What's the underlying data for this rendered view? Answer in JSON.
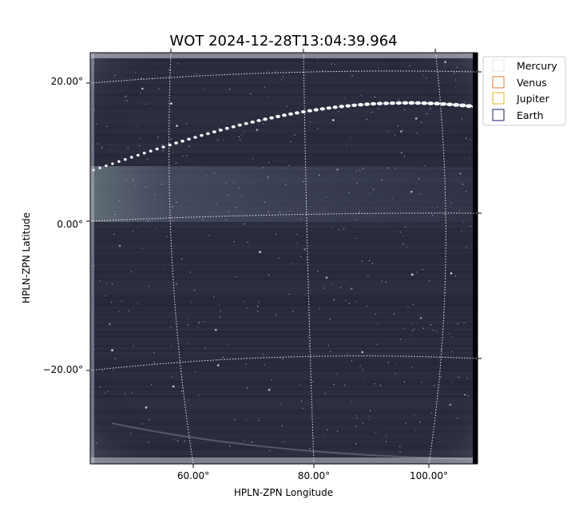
{
  "figure": {
    "title": "WOT 2024-12-28T13:04:39.964",
    "xlabel": "HPLN-ZPN Longitude",
    "ylabel": "HPLN-ZPN Latitude",
    "x_ticks": [
      "60.00°",
      "80.00°",
      "100.00°"
    ],
    "y_ticks": [
      "20.00°",
      "0.00°",
      "−20.00°"
    ]
  },
  "legend": {
    "placement": "upper-right-outside",
    "entries": [
      {
        "label": "Mercury",
        "color": "#e6e6e6"
      },
      {
        "label": "Venus",
        "color": "#e07b39"
      },
      {
        "label": "Jupiter",
        "color": "#e6b422"
      },
      {
        "label": "Earth",
        "color": "#1a1a6e"
      }
    ]
  },
  "image": {
    "colormap": "grey-blue",
    "background_color": "#2a2c3e",
    "grid_color": "#ffffff"
  }
}
